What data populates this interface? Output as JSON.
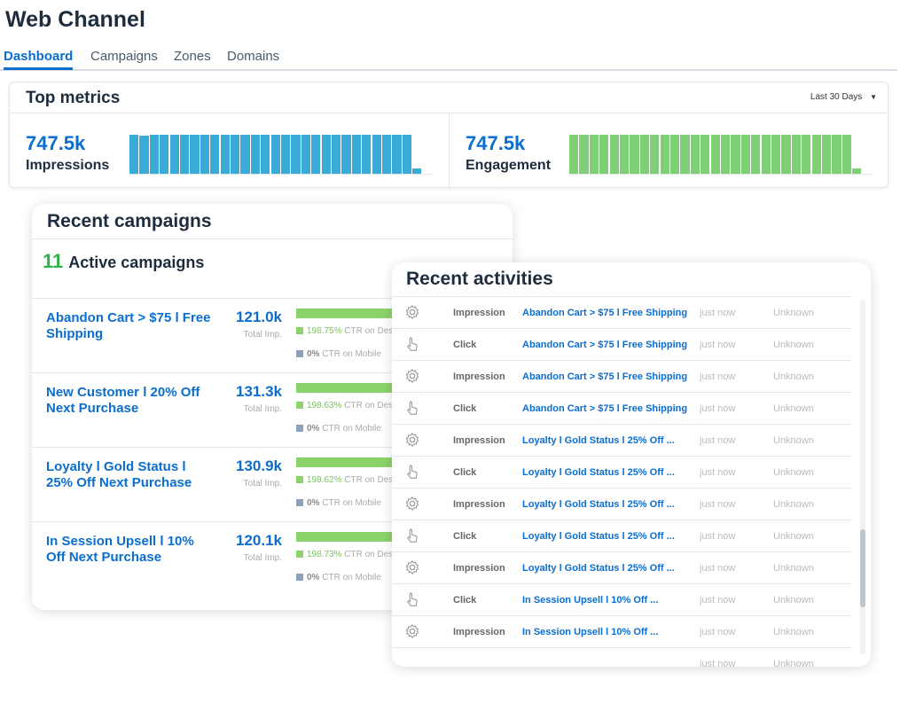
{
  "app": {
    "title": "Web Channel"
  },
  "tabs": [
    {
      "label": "Dashboard",
      "active": true
    },
    {
      "label": "Campaigns"
    },
    {
      "label": "Zones"
    },
    {
      "label": "Domains"
    }
  ],
  "top_metrics": {
    "title": "Top metrics",
    "range": "Last 30 Days",
    "impressions": {
      "value": "747.5k",
      "label": "Impressions",
      "color": "#3aabd6",
      "bar_levels": [
        1,
        0.98,
        1,
        1,
        1,
        1,
        1,
        1,
        1,
        1,
        1,
        1,
        1,
        1,
        1,
        1,
        1,
        1,
        1,
        1,
        1,
        1,
        1,
        1,
        1,
        1,
        1,
        1,
        0.14
      ]
    },
    "engagement": {
      "value": "747.5k",
      "label": "Engagement",
      "color": "#7fcf74",
      "bar_levels": [
        1,
        1,
        1,
        1,
        1,
        1,
        1,
        1,
        1,
        1,
        1,
        1,
        1,
        1,
        1,
        1,
        1,
        1,
        1,
        1,
        1,
        1,
        1,
        1,
        1,
        1,
        1,
        1,
        0.14
      ]
    }
  },
  "recent_campaigns": {
    "title": "Recent campaigns",
    "active_count": "11",
    "active_label": "Active campaigns",
    "items": [
      {
        "name": "Abandon Cart > $75 l Free Shipping",
        "value": "121.0k",
        "sub": "Total Imp.",
        "desktop_pct": "198.75%",
        "desktop_label": "CTR on Des",
        "mobile_pct": "0%",
        "mobile_label": "CTR on Mobile"
      },
      {
        "name": "New Customer l 20% Off Next Purchase",
        "value": "131.3k",
        "sub": "Total Imp.",
        "desktop_pct": "198.63%",
        "desktop_label": "CTR on Des",
        "mobile_pct": "0%",
        "mobile_label": "CTR on Mobile"
      },
      {
        "name": "Loyalty l Gold Status l 25% Off Next Purchase",
        "value": "130.9k",
        "sub": "Total Imp.",
        "desktop_pct": "198.62%",
        "desktop_label": "CTR on Des",
        "mobile_pct": "0%",
        "mobile_label": "CTR on Mobile"
      },
      {
        "name": "In Session Upsell l 10% Off Next Purchase",
        "value": "120.1k",
        "sub": "Total Imp.",
        "desktop_pct": "198.73%",
        "desktop_label": "CTR on Des",
        "mobile_pct": "0%",
        "mobile_label": "CTR on Mobile"
      }
    ]
  },
  "recent_activities": {
    "title": "Recent activities",
    "rows": [
      {
        "icon": "gear-icon",
        "type": "Impression",
        "campaign": "Abandon Cart > $75 l Free Shipping",
        "time": "just now",
        "location": "Unknown"
      },
      {
        "icon": "hand-pointer-icon",
        "type": "Click",
        "campaign": "Abandon Cart > $75 l Free Shipping",
        "time": "just now",
        "location": "Unknown"
      },
      {
        "icon": "gear-icon",
        "type": "Impression",
        "campaign": "Abandon Cart > $75 l Free Shipping",
        "time": "just now",
        "location": "Unknown"
      },
      {
        "icon": "hand-pointer-icon",
        "type": "Click",
        "campaign": "Abandon Cart > $75 l Free Shipping",
        "time": "just now",
        "location": "Unknown"
      },
      {
        "icon": "gear-icon",
        "type": "Impression",
        "campaign": "Loyalty l Gold Status l 25% Off ...",
        "time": "just now",
        "location": "Unknown"
      },
      {
        "icon": "hand-pointer-icon",
        "type": "Click",
        "campaign": "Loyalty l Gold Status l 25% Off ...",
        "time": "just now",
        "location": "Unknown"
      },
      {
        "icon": "gear-icon",
        "type": "Impression",
        "campaign": "Loyalty l Gold Status l 25% Off ...",
        "time": "just now",
        "location": "Unknown"
      },
      {
        "icon": "hand-pointer-icon",
        "type": "Click",
        "campaign": "Loyalty l Gold Status l 25% Off ...",
        "time": "just now",
        "location": "Unknown"
      },
      {
        "icon": "gear-icon",
        "type": "Impression",
        "campaign": "Loyalty l Gold Status l 25% Off ...",
        "time": "just now",
        "location": "Unknown"
      },
      {
        "icon": "hand-pointer-icon",
        "type": "Click",
        "campaign": "In Session Upsell l 10% Off ...",
        "time": "just now",
        "location": "Unknown"
      },
      {
        "icon": "gear-icon",
        "type": "Impression",
        "campaign": "In Session Upsell l 10% Off ...",
        "time": "just now",
        "location": "Unknown"
      },
      {
        "icon": "",
        "type": "",
        "campaign": "",
        "time": "just now",
        "location": "Unknown"
      }
    ]
  }
}
